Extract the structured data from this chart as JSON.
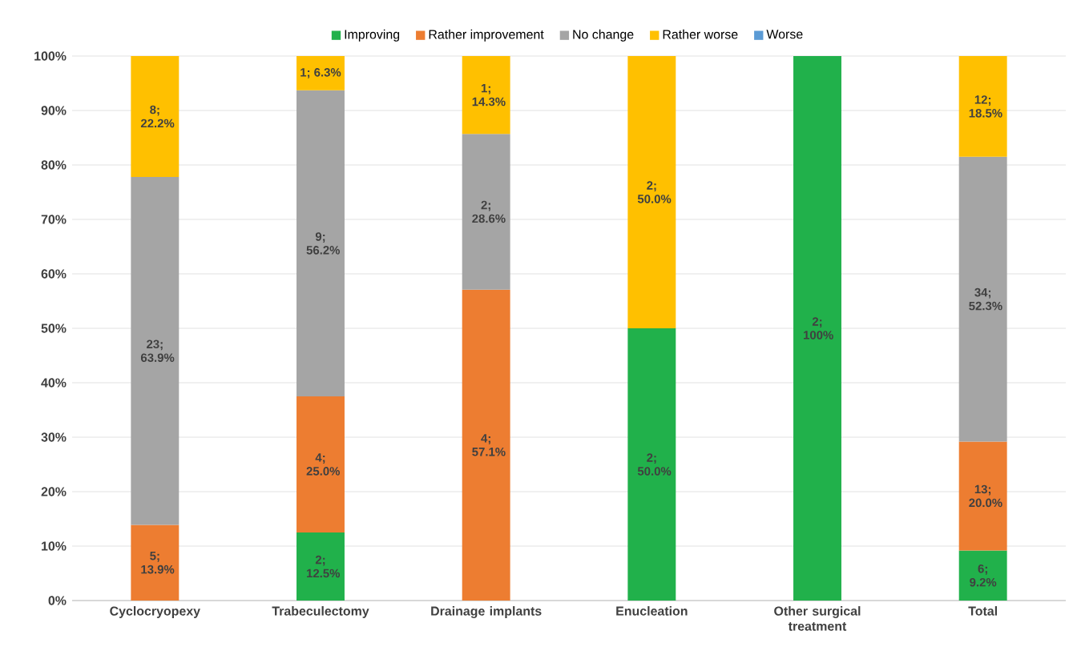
{
  "chart_data": {
    "type": "bar",
    "stacked": true,
    "categories": [
      "Cyclocryopexy",
      "Trabeculectomy",
      "Drainage implants",
      "Enucleation",
      "Other surgical treatment",
      "Total"
    ],
    "series": [
      {
        "name": "Improving",
        "color": "#21b14b",
        "values": [
          null,
          12.5,
          null,
          50.0,
          100,
          9.2
        ],
        "value_labels": [
          null,
          "2; 12.5%",
          null,
          "2; 50.0%",
          "2; 100%",
          "6; 9.2%"
        ]
      },
      {
        "name": "Rather improvement",
        "color": "#ed7d31",
        "values": [
          13.9,
          25.0,
          57.1,
          null,
          null,
          20.0
        ],
        "value_labels": [
          "5; 13.9%",
          "4; 25.0%",
          "4; 57.1%",
          null,
          null,
          "13; 20.0%"
        ]
      },
      {
        "name": "No change",
        "color": "#a5a5a5",
        "values": [
          63.9,
          56.2,
          28.6,
          null,
          null,
          52.3
        ],
        "value_labels": [
          "23; 63.9%",
          "9; 56.2%",
          "2; 28.6%",
          null,
          null,
          "34; 52.3%"
        ]
      },
      {
        "name": "Rather worse",
        "color": "#ffc000",
        "values": [
          22.2,
          6.3,
          14.3,
          50.0,
          null,
          18.5
        ],
        "value_labels": [
          "8; 22.2%",
          "1; 6.3%",
          "1; 14.3%",
          "2; 50.0%",
          null,
          "12; 18.5%"
        ]
      },
      {
        "name": "Worse",
        "color": "#5b9bd5",
        "values": [
          null,
          null,
          null,
          null,
          null,
          null
        ]
      }
    ],
    "ylim": [
      0,
      100
    ],
    "yticks": [
      {
        "value": 0,
        "label": "0%"
      },
      {
        "value": 10,
        "label": "10%"
      },
      {
        "value": 20,
        "label": "20%"
      },
      {
        "value": 30,
        "label": "30%"
      },
      {
        "value": 40,
        "label": "40%"
      },
      {
        "value": 50,
        "label": "50%"
      },
      {
        "value": 60,
        "label": "60%"
      },
      {
        "value": 70,
        "label": "70%"
      },
      {
        "value": 80,
        "label": "80%"
      },
      {
        "value": 90,
        "label": "90%"
      },
      {
        "value": 100,
        "label": "100%"
      }
    ],
    "grid": "y",
    "legend": "top"
  }
}
